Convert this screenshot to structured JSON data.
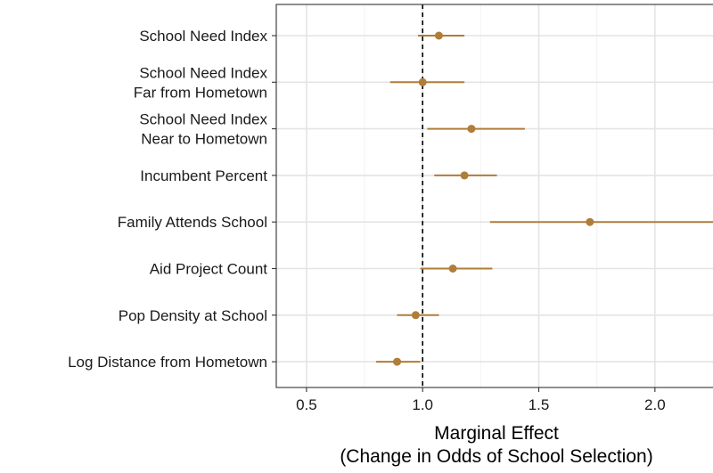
{
  "chart_data": {
    "type": "scatter",
    "subtype": "coefficient-plot",
    "title": "",
    "xlabel_line1": "Marginal Effect",
    "xlabel_line2": "(Change in Odds of School Selection)",
    "ylabel": "",
    "xlim": [
      0.37,
      2.25
    ],
    "x_ticks": [
      0.5,
      1.0,
      1.5,
      2.0
    ],
    "x_tick_labels": [
      "0.5",
      "1.0",
      "1.5",
      "2.0"
    ],
    "reference_line": 1.0,
    "grid": true,
    "point_color": "#b07d3a",
    "terms": [
      {
        "label_lines": [
          "School Need Index"
        ],
        "estimate": 1.07,
        "low": 0.98,
        "high": 1.18
      },
      {
        "label_lines": [
          "School Need Index",
          "Far from Hometown"
        ],
        "estimate": 1.0,
        "low": 0.86,
        "high": 1.18
      },
      {
        "label_lines": [
          "School Need Index",
          "Near to Hometown"
        ],
        "estimate": 1.21,
        "low": 1.02,
        "high": 1.44
      },
      {
        "label_lines": [
          "Incumbent Percent"
        ],
        "estimate": 1.18,
        "low": 1.05,
        "high": 1.32
      },
      {
        "label_lines": [
          "Family Attends School"
        ],
        "estimate": 1.72,
        "low": 1.29,
        "high": 2.3
      },
      {
        "label_lines": [
          "Aid Project Count"
        ],
        "estimate": 1.13,
        "low": 0.99,
        "high": 1.3
      },
      {
        "label_lines": [
          "Pop Density at School"
        ],
        "estimate": 0.97,
        "low": 0.89,
        "high": 1.07
      },
      {
        "label_lines": [
          "Log Distance from Hometown"
        ],
        "estimate": 0.89,
        "low": 0.8,
        "high": 0.99
      }
    ]
  }
}
